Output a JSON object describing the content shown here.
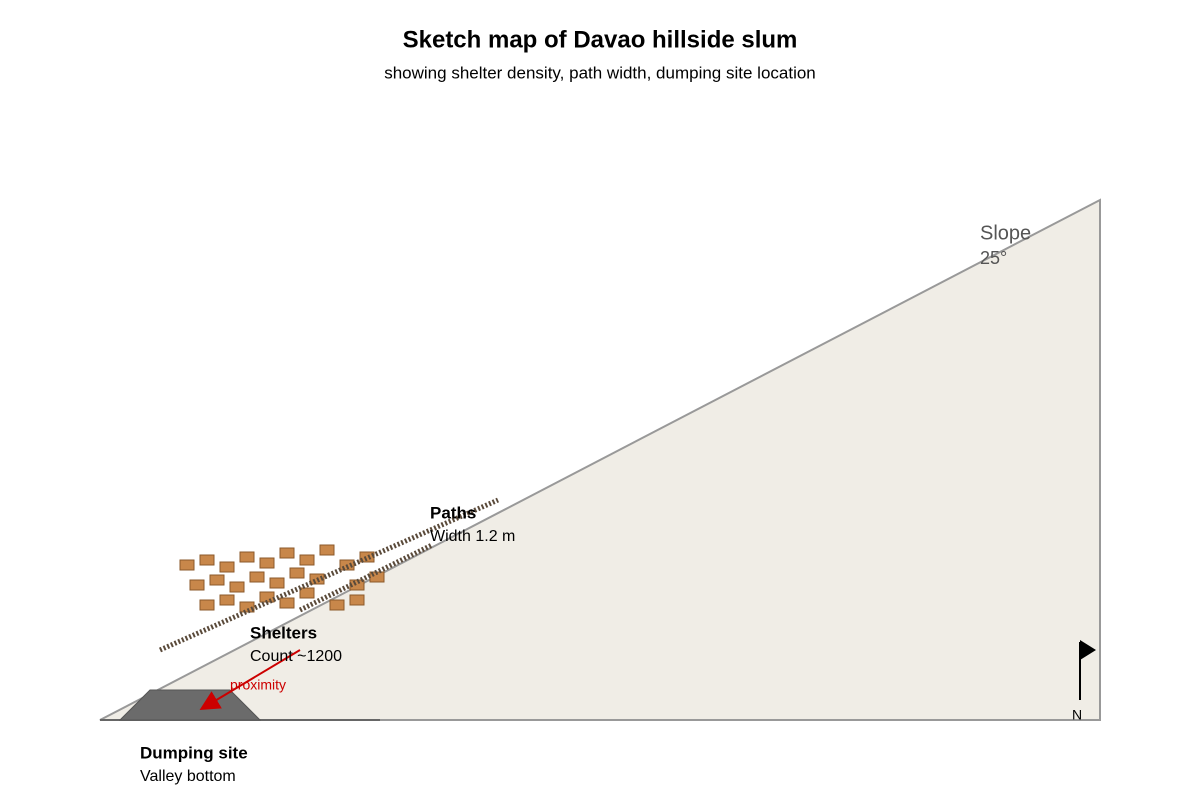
{
  "title": "Sketch map of Davao hillside slum",
  "subtitle": "showing shelter density, path width, dumping site location",
  "slope": {
    "label": "Slope",
    "angle": "25°"
  },
  "paths": {
    "label": "Paths",
    "detail": "Width 1.2 m"
  },
  "shelters": {
    "label": "Shelters",
    "detail": "Count ~1200"
  },
  "proximity": "proximity",
  "dumping_site": {
    "label": "Dumping site",
    "detail": "Valley bottom"
  },
  "north": "N"
}
